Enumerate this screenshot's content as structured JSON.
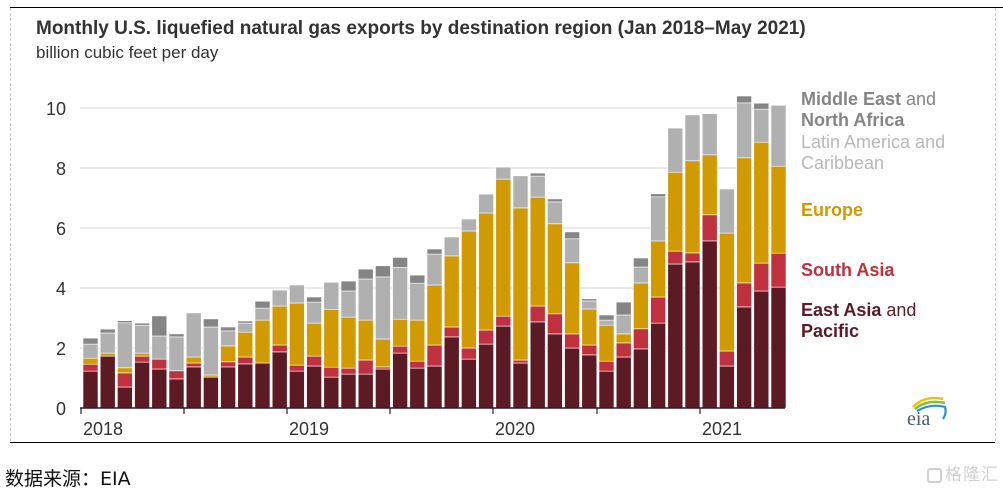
{
  "chart_data": {
    "type": "bar",
    "stacked": true,
    "title": "Monthly U.S. liquefied natural gas exports by destination region (Jan 2018–May 2021)",
    "subtitle": "billion cubic feet per day",
    "xlabel": "",
    "ylabel": "billion cubic feet per day",
    "ylim": [
      0,
      10.5
    ],
    "yticks": [
      0,
      2,
      4,
      6,
      8,
      10
    ],
    "xtick_labels": [
      "2018",
      "2019",
      "2020",
      "2021"
    ],
    "grid": true,
    "legend_position": "right",
    "categories": [
      "Jan 2018",
      "Feb 2018",
      "Mar 2018",
      "Apr 2018",
      "May 2018",
      "Jun 2018",
      "Jul 2018",
      "Aug 2018",
      "Sep 2018",
      "Oct 2018",
      "Nov 2018",
      "Dec 2018",
      "Jan 2019",
      "Feb 2019",
      "Mar 2019",
      "Apr 2019",
      "May 2019",
      "Jun 2019",
      "Jul 2019",
      "Aug 2019",
      "Sep 2019",
      "Oct 2019",
      "Nov 2019",
      "Dec 2019",
      "Jan 2020",
      "Feb 2020",
      "Mar 2020",
      "Apr 2020",
      "May 2020",
      "Jun 2020",
      "Jul 2020",
      "Aug 2020",
      "Sep 2020",
      "Oct 2020",
      "Nov 2020",
      "Dec 2020",
      "Jan 2021",
      "Feb 2021",
      "Mar 2021",
      "Apr 2021",
      "May 2021"
    ],
    "series": [
      {
        "name": "East Asia and Pacific",
        "color": "#5b1a24",
        "values": [
          1.23,
          1.73,
          0.7,
          1.53,
          1.3,
          0.97,
          1.37,
          1.03,
          1.37,
          1.47,
          1.5,
          1.87,
          1.23,
          1.4,
          1.03,
          1.13,
          1.13,
          1.3,
          1.83,
          1.33,
          1.4,
          2.37,
          1.63,
          2.13,
          2.73,
          1.5,
          2.87,
          2.47,
          2.0,
          1.77,
          1.23,
          1.7,
          1.97,
          2.83,
          4.8,
          4.87,
          5.57,
          1.4,
          3.37,
          3.9,
          4.03
        ]
      },
      {
        "name": "South Asia",
        "color": "#c0313f",
        "values": [
          0.23,
          0,
          0.47,
          0.2,
          0.33,
          0.27,
          0.13,
          0,
          0.17,
          0.23,
          0,
          0.23,
          0.2,
          0.33,
          0.33,
          0.2,
          0.47,
          0.07,
          0.23,
          0.23,
          0.7,
          0.33,
          0.37,
          0.47,
          0.33,
          0.1,
          0.53,
          0.67,
          0.47,
          0.33,
          0.33,
          0.47,
          0.67,
          0.87,
          0.43,
          0.3,
          0.87,
          0.5,
          0.8,
          0.93,
          1.13
        ]
      },
      {
        "name": "Europe",
        "color": "#d19a00",
        "values": [
          0.2,
          0.1,
          0.17,
          0.1,
          0,
          0,
          0.2,
          0.07,
          0.53,
          0.83,
          1.43,
          1.3,
          2.07,
          1.1,
          1.93,
          1.7,
          1.33,
          0.93,
          0.9,
          1.37,
          2.0,
          2.37,
          3.9,
          3.9,
          4.57,
          5.07,
          3.63,
          3.0,
          2.37,
          1.2,
          1.2,
          0.3,
          1.53,
          1.87,
          2.63,
          3.07,
          2.0,
          3.93,
          4.17,
          4.03,
          2.9
        ]
      },
      {
        "name": "Latin America and Caribbean",
        "color": "#b0b0b0",
        "values": [
          0.47,
          0.67,
          1.5,
          0.93,
          0.77,
          1.13,
          1.47,
          1.6,
          0.5,
          0.3,
          0.4,
          0.53,
          0.6,
          0.7,
          0.9,
          0.87,
          1.37,
          2.07,
          1.73,
          1.23,
          1.03,
          0.63,
          0.4,
          0.63,
          0.4,
          1.07,
          0.7,
          0.73,
          0.8,
          0.27,
          0.17,
          0.63,
          0.53,
          1.47,
          1.47,
          1.53,
          1.37,
          1.47,
          1.83,
          1.1,
          2.03
        ]
      },
      {
        "name": "Middle East and North Africa",
        "color": "#858585",
        "values": [
          0.2,
          0.13,
          0.07,
          0.07,
          0.67,
          0.1,
          0,
          0.27,
          0.13,
          0.07,
          0.23,
          0,
          0,
          0.17,
          0,
          0.33,
          0.33,
          0.37,
          0.33,
          0.27,
          0.17,
          0,
          0,
          0,
          0,
          0,
          0.1,
          0.1,
          0.23,
          0.07,
          0.17,
          0.43,
          0.3,
          0.1,
          0,
          0,
          0,
          0,
          0.23,
          0.2,
          0
        ]
      }
    ]
  },
  "legend": [
    {
      "bold": "Middle East",
      "rest": " and",
      "line2_bold": "North Africa",
      "color": "#858585"
    },
    {
      "text1": "Latin America and",
      "text2": "Caribbean",
      "color": "#b8b8b8"
    },
    {
      "bold": "Europe",
      "color": "#d19a00"
    },
    {
      "bold": "South Asia",
      "color": "#c0313f"
    },
    {
      "bold": "East Asia",
      "rest": " and",
      "line2_bold": "Pacific",
      "color": "#5b1a24"
    }
  ],
  "logo": "eia",
  "source_note": "数据来源：EIA",
  "watermark": "格隆汇"
}
